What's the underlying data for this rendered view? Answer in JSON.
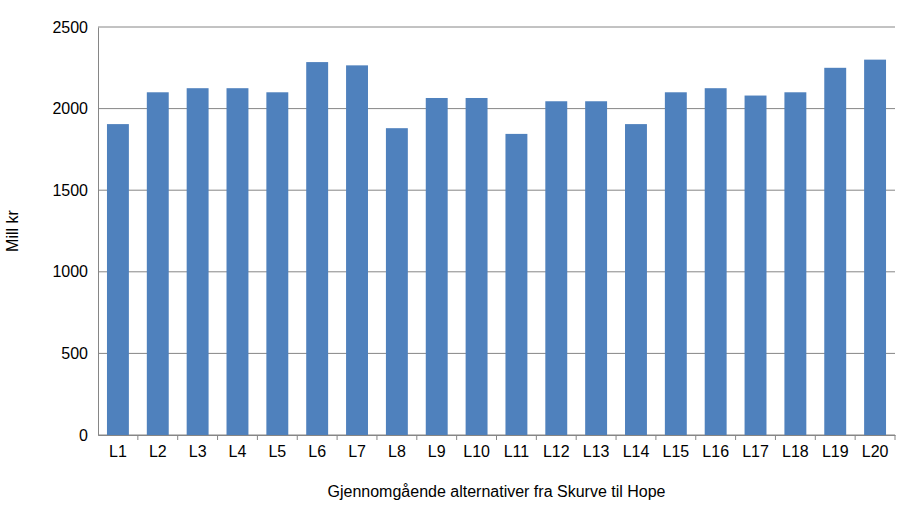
{
  "chart_data": {
    "type": "bar",
    "x_label": "Gjennomgående alternativer fra Skurve til Hope",
    "y_label": "Mill kr",
    "categories": [
      "L1",
      "L2",
      "L3",
      "L4",
      "L5",
      "L6",
      "L7",
      "L8",
      "L9",
      "L10",
      "L11",
      "L12",
      "L13",
      "L14",
      "L15",
      "L16",
      "L17",
      "L18",
      "L19",
      "L20"
    ],
    "values": [
      1905,
      2100,
      2125,
      2125,
      2100,
      2285,
      2265,
      1880,
      2065,
      2065,
      1845,
      2045,
      2045,
      1905,
      2100,
      2125,
      2080,
      2100,
      2250,
      2300
    ],
    "color": "#4f81bd",
    "ylim": [
      0,
      2500
    ],
    "yticks": [
      0,
      500,
      1000,
      1500,
      2000,
      2500
    ],
    "grid": true
  }
}
